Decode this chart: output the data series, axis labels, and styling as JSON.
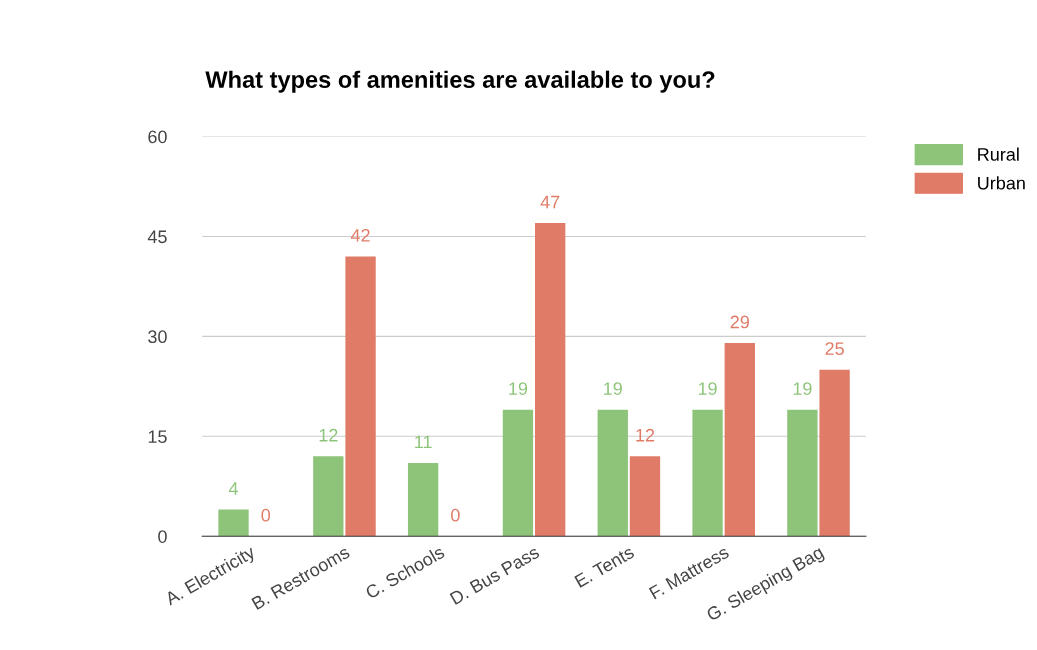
{
  "chart_data": {
    "type": "bar",
    "title": "What types of amenities are available to you?",
    "categories": [
      "A. Electricity",
      "B. Restrooms",
      "C. Schools",
      "D. Bus Pass",
      "E. Tents",
      "F. Mattress",
      "G. Sleeping Bag"
    ],
    "series": [
      {
        "name": "Rural",
        "color": "#8dc47a",
        "values": [
          4,
          12,
          11,
          19,
          19,
          19,
          19
        ]
      },
      {
        "name": "Urban",
        "color": "#e07b67",
        "values": [
          0,
          42,
          0,
          47,
          12,
          29,
          25
        ]
      }
    ],
    "ylim": [
      0,
      60
    ],
    "yticks": [
      0,
      15,
      30,
      45,
      60
    ],
    "grid": "y",
    "legend": "top right",
    "data_labels": true
  }
}
